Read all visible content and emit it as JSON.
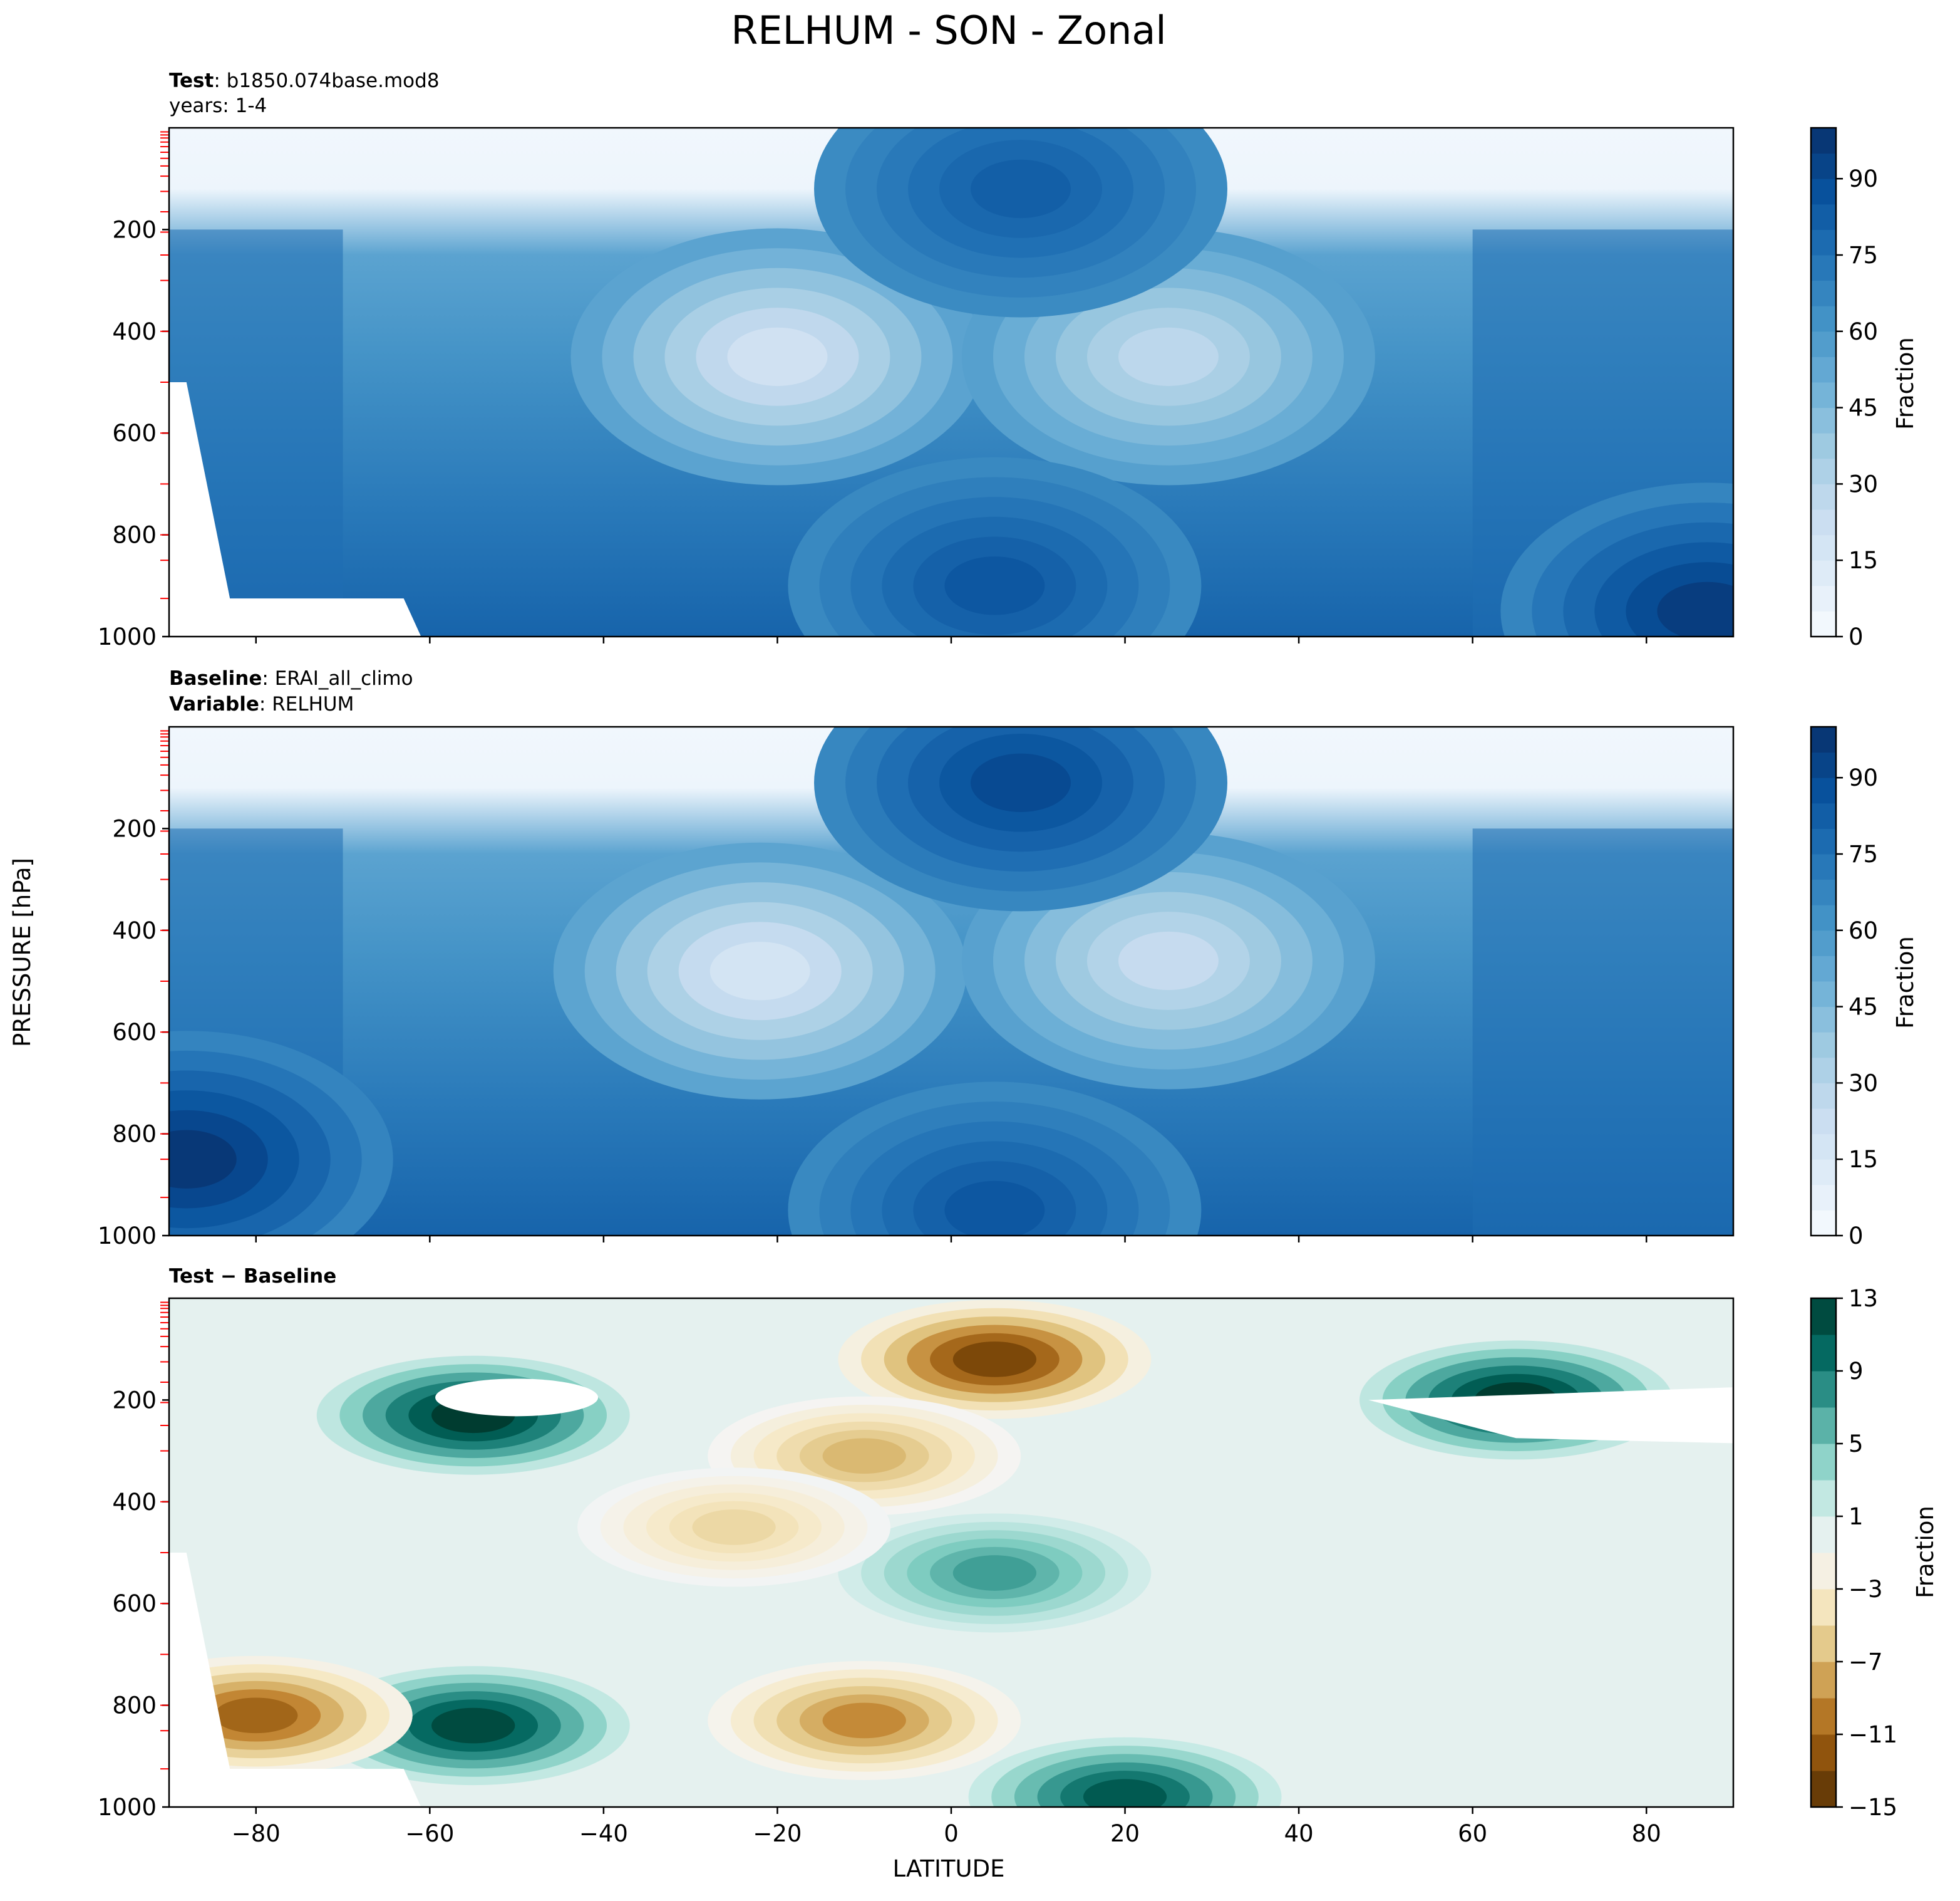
{
  "figure": {
    "title": "RELHUM - SON - Zonal",
    "ylabel": "PRESSURE [hPa]",
    "xlabel": "LATITUDE"
  },
  "panels": {
    "test": {
      "line1_bold": "Test",
      "line1_sep": ": ",
      "line1_text": "b1850.074base.mod8",
      "line2_text": "years: 1-4",
      "colorbar_label": "Fraction"
    },
    "baseline": {
      "line1_bold": "Baseline",
      "line1_sep": ": ",
      "line1_text": "ERAI_all_climo",
      "line2_bold": "Variable",
      "line2_sep": ": ",
      "line2_text": "RELHUM",
      "colorbar_label": "Fraction"
    },
    "diff": {
      "title_bold": "Test − Baseline",
      "colorbar_label": "Fraction"
    }
  },
  "chart_data": [
    {
      "type": "heatmap",
      "name": "Test",
      "x_ticks": [
        -80,
        -60,
        -40,
        -20,
        0,
        20,
        40,
        60,
        80
      ],
      "x_tick_labels": [
        "−80",
        "−60",
        "−40",
        "−20",
        "0",
        "20",
        "40",
        "60",
        "80"
      ],
      "xlim": [
        -90,
        90
      ],
      "y_ticks": [
        200,
        400,
        600,
        800,
        1000
      ],
      "ylim": [
        1000,
        0
      ],
      "y_inverted": true,
      "colormap": "Blues",
      "colorbar_ticks": [
        0,
        15,
        30,
        45,
        60,
        75,
        90
      ],
      "colorbar_range": [
        0,
        100
      ],
      "colorbar_levels": 20,
      "features": [
        {
          "kind": "dry_max",
          "lat": -20,
          "p": 450,
          "value": 20
        },
        {
          "kind": "dry_max",
          "lat": 25,
          "p": 450,
          "value": 28
        },
        {
          "kind": "moist_max",
          "lat": 5,
          "p": 900,
          "value": 85
        },
        {
          "kind": "moist_max",
          "lat": 8,
          "p": 120,
          "value": 82
        },
        {
          "kind": "moist_max",
          "lat": 87,
          "p": 950,
          "value": 95
        }
      ]
    },
    {
      "type": "heatmap",
      "name": "Baseline",
      "x_ticks": [
        -80,
        -60,
        -40,
        -20,
        0,
        20,
        40,
        60,
        80
      ],
      "x_tick_labels": [
        "−80",
        "−60",
        "−40",
        "−20",
        "0",
        "20",
        "40",
        "60",
        "80"
      ],
      "xlim": [
        -90,
        90
      ],
      "y_ticks": [
        200,
        400,
        600,
        800,
        1000
      ],
      "ylim": [
        1000,
        0
      ],
      "y_inverted": true,
      "colormap": "Blues",
      "colorbar_ticks": [
        0,
        15,
        30,
        45,
        60,
        75,
        90
      ],
      "colorbar_range": [
        0,
        100
      ],
      "colorbar_levels": 20,
      "features": [
        {
          "kind": "dry_max",
          "lat": -22,
          "p": 480,
          "value": 18
        },
        {
          "kind": "dry_max",
          "lat": 25,
          "p": 460,
          "value": 25
        },
        {
          "kind": "moist_max",
          "lat": 8,
          "p": 110,
          "value": 90
        },
        {
          "kind": "moist_max",
          "lat": 5,
          "p": 950,
          "value": 85
        },
        {
          "kind": "moist_max",
          "lat": -88,
          "p": 850,
          "value": 97
        }
      ]
    },
    {
      "type": "heatmap",
      "name": "Test − Baseline",
      "x_ticks": [
        -80,
        -60,
        -40,
        -20,
        0,
        20,
        40,
        60,
        80
      ],
      "x_tick_labels": [
        "−80",
        "−60",
        "−40",
        "−20",
        "0",
        "20",
        "40",
        "60",
        "80"
      ],
      "xlim": [
        -90,
        90
      ],
      "y_ticks": [
        200,
        400,
        600,
        800,
        1000
      ],
      "ylim": [
        1000,
        0
      ],
      "y_inverted": true,
      "colormap": "BrBG",
      "colorbar_ticks": [
        -15,
        -11,
        -7,
        -3,
        1,
        5,
        9,
        13
      ],
      "colorbar_tick_labels": [
        "−15",
        "−11",
        "−7",
        "−3",
        "1",
        "5",
        "9",
        "13"
      ],
      "colorbar_range": [
        -15,
        13
      ],
      "colorbar_levels": 14,
      "features": [
        {
          "kind": "positive",
          "lat": -55,
          "p": 230,
          "value": 13
        },
        {
          "kind": "positive",
          "lat": 65,
          "p": 200,
          "value": 13
        },
        {
          "kind": "positive",
          "lat": -55,
          "p": 840,
          "value": 12
        },
        {
          "kind": "positive",
          "lat": 5,
          "p": 540,
          "value": 7
        },
        {
          "kind": "positive",
          "lat": 20,
          "p": 980,
          "value": 11
        },
        {
          "kind": "negative",
          "lat": 5,
          "p": 120,
          "value": -13
        },
        {
          "kind": "negative",
          "lat": -80,
          "p": 820,
          "value": -11
        },
        {
          "kind": "negative",
          "lat": -10,
          "p": 830,
          "value": -9
        },
        {
          "kind": "negative",
          "lat": -10,
          "p": 310,
          "value": -7
        },
        {
          "kind": "negative",
          "lat": -25,
          "p": 450,
          "value": -5
        }
      ]
    }
  ],
  "colors": {
    "blues": [
      "#f7fbff",
      "#deebf7",
      "#c6dbef",
      "#9ecae1",
      "#6baed6",
      "#4292c6",
      "#2171b5",
      "#08519c",
      "#08306b"
    ],
    "brbg": [
      "#543005",
      "#8c510a",
      "#bf812d",
      "#dfc27d",
      "#f6e8c3",
      "#f5f5f5",
      "#c7eae5",
      "#80cdc1",
      "#35978f",
      "#01665e",
      "#003c30"
    ],
    "level_tick": "#ff0000"
  }
}
